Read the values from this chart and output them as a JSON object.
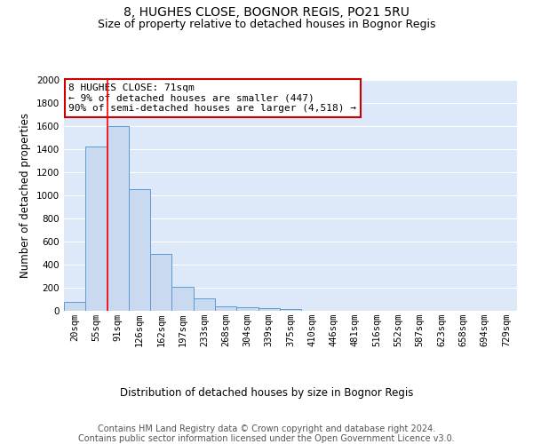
{
  "title_line1": "8, HUGHES CLOSE, BOGNOR REGIS, PO21 5RU",
  "title_line2": "Size of property relative to detached houses in Bognor Regis",
  "xlabel": "Distribution of detached houses by size in Bognor Regis",
  "ylabel": "Number of detached properties",
  "bin_labels": [
    "20sqm",
    "55sqm",
    "91sqm",
    "126sqm",
    "162sqm",
    "197sqm",
    "233sqm",
    "268sqm",
    "304sqm",
    "339sqm",
    "375sqm",
    "410sqm",
    "446sqm",
    "481sqm",
    "516sqm",
    "552sqm",
    "587sqm",
    "623sqm",
    "658sqm",
    "694sqm",
    "729sqm"
  ],
  "bar_heights": [
    80,
    1420,
    1600,
    1050,
    490,
    205,
    105,
    40,
    30,
    20,
    15,
    0,
    0,
    0,
    0,
    0,
    0,
    0,
    0,
    0,
    0
  ],
  "bar_color": "#c9d9f0",
  "bar_edge_color": "#5b9bd5",
  "background_color": "#dde8f8",
  "grid_color": "#ffffff",
  "red_line_x": 1.5,
  "ylim": [
    0,
    2000
  ],
  "yticks": [
    0,
    200,
    400,
    600,
    800,
    1000,
    1200,
    1400,
    1600,
    1800,
    2000
  ],
  "annotation_text": "8 HUGHES CLOSE: 71sqm\n← 9% of detached houses are smaller (447)\n90% of semi-detached houses are larger (4,518) →",
  "annotation_box_color": "#ffffff",
  "annotation_box_edge": "#cc0000",
  "footer_text": "Contains HM Land Registry data © Crown copyright and database right 2024.\nContains public sector information licensed under the Open Government Licence v3.0.",
  "title_fontsize": 10,
  "subtitle_fontsize": 9,
  "axis_label_fontsize": 8.5,
  "tick_fontsize": 7.5,
  "annotation_fontsize": 8,
  "footer_fontsize": 7
}
